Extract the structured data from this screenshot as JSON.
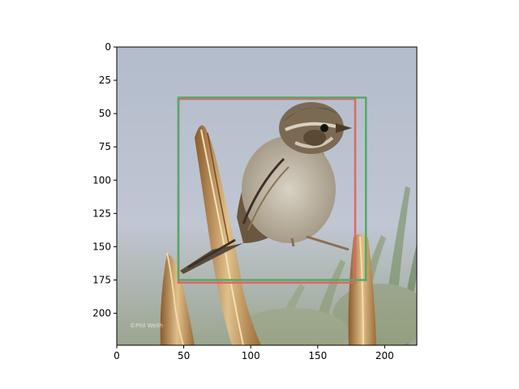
{
  "figure": {
    "image_subject": "sparrow perched on dry plant stalk against blue-grey sky",
    "image_size": [
      224,
      224
    ],
    "x_axis": {
      "range": [
        0,
        224
      ],
      "ticks": [
        0,
        50,
        100,
        150,
        200
      ]
    },
    "y_axis": {
      "range": [
        0,
        224
      ],
      "inverted": true,
      "ticks": [
        0,
        25,
        50,
        75,
        100,
        125,
        150,
        175,
        200
      ]
    },
    "boxes": [
      {
        "label": "red-box",
        "color": "#e06666",
        "x0": 46,
        "y0": 39,
        "x1": 178,
        "y1": 177
      },
      {
        "label": "green-box",
        "color": "#55a868",
        "x0": 46,
        "y0": 38,
        "x1": 186,
        "y1": 175
      }
    ],
    "watermark_text": "©Phil Weilh"
  },
  "colors": {
    "sky_top": "#b4bccb",
    "sky_bottom": "#c3c8d3",
    "bird_body": "#b4ab99",
    "bird_dark": "#5c4a35",
    "stalk": "#c89a5a"
  }
}
